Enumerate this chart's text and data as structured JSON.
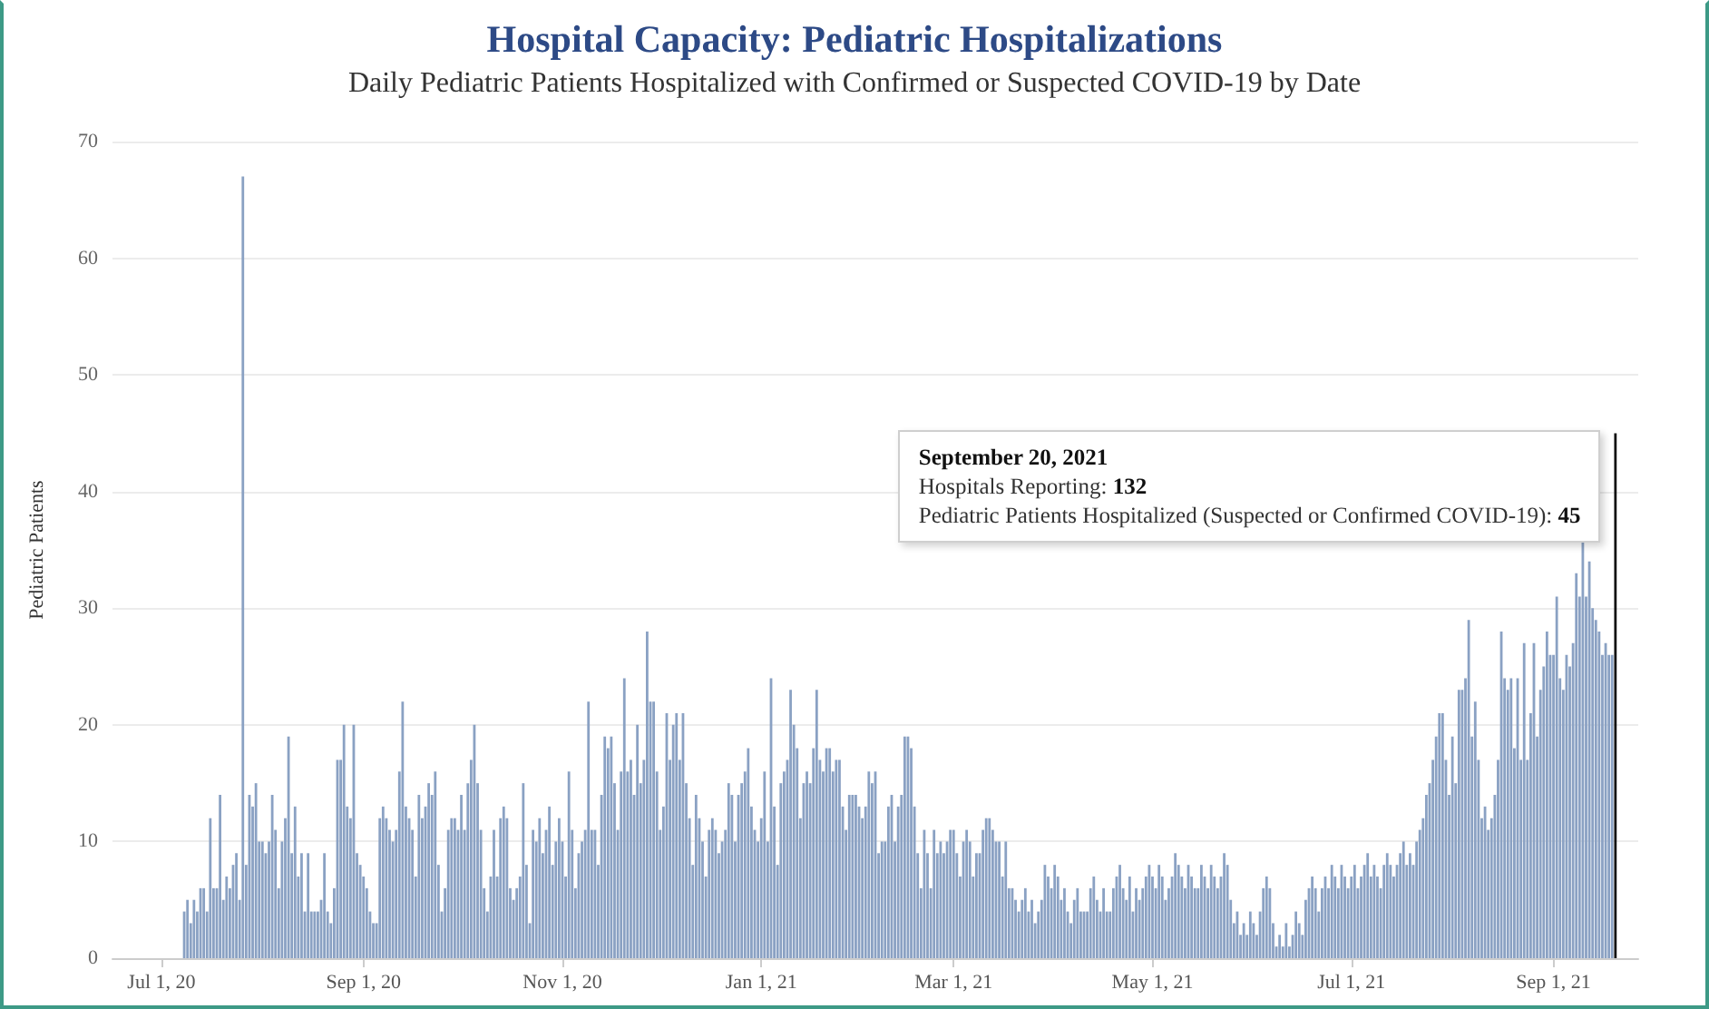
{
  "chart_data": {
    "type": "bar",
    "title": "Hospital Capacity: Pediatric Hospitalizations",
    "subtitle": "Daily Pediatric Patients Hospitalized with Confirmed or Suspected COVID-19 by Date",
    "ylabel": "Pediatric Patients",
    "x": [
      "2020-07-08",
      "2020-07-09",
      "2020-07-10",
      "2020-07-11",
      "2020-07-12",
      "2020-07-13",
      "2020-07-14",
      "2020-07-15",
      "2020-07-16",
      "2020-07-17",
      "2020-07-18",
      "2020-07-19",
      "2020-07-20",
      "2020-07-21",
      "2020-07-22",
      "2020-07-23",
      "2020-07-24",
      "2020-07-25",
      "2020-07-26",
      "2020-07-27",
      "2020-07-28",
      "2020-07-29",
      "2020-07-30",
      "2020-07-31",
      "2020-08-01",
      "2020-08-02",
      "2020-08-03",
      "2020-08-04",
      "2020-08-05",
      "2020-08-06",
      "2020-08-07",
      "2020-08-08",
      "2020-08-09",
      "2020-08-10",
      "2020-08-11",
      "2020-08-12",
      "2020-08-13",
      "2020-08-14",
      "2020-08-15",
      "2020-08-16",
      "2020-08-17",
      "2020-08-18",
      "2020-08-19",
      "2020-08-20",
      "2020-08-21",
      "2020-08-22",
      "2020-08-23",
      "2020-08-24",
      "2020-08-25",
      "2020-08-26",
      "2020-08-27",
      "2020-08-28",
      "2020-08-29",
      "2020-08-30",
      "2020-08-31",
      "2020-09-01",
      "2020-09-02",
      "2020-09-03",
      "2020-09-04",
      "2020-09-05",
      "2020-09-06",
      "2020-09-07",
      "2020-09-08",
      "2020-09-09",
      "2020-09-10",
      "2020-09-11",
      "2020-09-12",
      "2020-09-13",
      "2020-09-14",
      "2020-09-15",
      "2020-09-16",
      "2020-09-17",
      "2020-09-18",
      "2020-09-19",
      "2020-09-20",
      "2020-09-21",
      "2020-09-22",
      "2020-09-23",
      "2020-09-24",
      "2020-09-25",
      "2020-09-26",
      "2020-09-27",
      "2020-09-28",
      "2020-09-29",
      "2020-09-30",
      "2020-10-01",
      "2020-10-02",
      "2020-10-03",
      "2020-10-04",
      "2020-10-05",
      "2020-10-06",
      "2020-10-07",
      "2020-10-08",
      "2020-10-09",
      "2020-10-10",
      "2020-10-11",
      "2020-10-12",
      "2020-10-13",
      "2020-10-14",
      "2020-10-15",
      "2020-10-16",
      "2020-10-17",
      "2020-10-18",
      "2020-10-19",
      "2020-10-20",
      "2020-10-21",
      "2020-10-22",
      "2020-10-23",
      "2020-10-24",
      "2020-10-25",
      "2020-10-26",
      "2020-10-27",
      "2020-10-28",
      "2020-10-29",
      "2020-10-30",
      "2020-10-31",
      "2020-11-01",
      "2020-11-02",
      "2020-11-03",
      "2020-11-04",
      "2020-11-05",
      "2020-11-06",
      "2020-11-07",
      "2020-11-08",
      "2020-11-09",
      "2020-11-10",
      "2020-11-11",
      "2020-11-12",
      "2020-11-13",
      "2020-11-14",
      "2020-11-15",
      "2020-11-16",
      "2020-11-17",
      "2020-11-18",
      "2020-11-19",
      "2020-11-20",
      "2020-11-21",
      "2020-11-22",
      "2020-11-23",
      "2020-11-24",
      "2020-11-25",
      "2020-11-26",
      "2020-11-27",
      "2020-11-28",
      "2020-11-29",
      "2020-11-30",
      "2020-12-01",
      "2020-12-02",
      "2020-12-03",
      "2020-12-04",
      "2020-12-05",
      "2020-12-06",
      "2020-12-07",
      "2020-12-08",
      "2020-12-09",
      "2020-12-10",
      "2020-12-11",
      "2020-12-12",
      "2020-12-13",
      "2020-12-14",
      "2020-12-15",
      "2020-12-16",
      "2020-12-17",
      "2020-12-18",
      "2020-12-19",
      "2020-12-20",
      "2020-12-21",
      "2020-12-22",
      "2020-12-23",
      "2020-12-24",
      "2020-12-25",
      "2020-12-26",
      "2020-12-27",
      "2020-12-28",
      "2020-12-29",
      "2020-12-30",
      "2020-12-31",
      "2021-01-01",
      "2021-01-02",
      "2021-01-03",
      "2021-01-04",
      "2021-01-05",
      "2021-01-06",
      "2021-01-07",
      "2021-01-08",
      "2021-01-09",
      "2021-01-10",
      "2021-01-11",
      "2021-01-12",
      "2021-01-13",
      "2021-01-14",
      "2021-01-15",
      "2021-01-16",
      "2021-01-17",
      "2021-01-18",
      "2021-01-19",
      "2021-01-20",
      "2021-01-21",
      "2021-01-22",
      "2021-01-23",
      "2021-01-24",
      "2021-01-25",
      "2021-01-26",
      "2021-01-27",
      "2021-01-28",
      "2021-01-29",
      "2021-01-30",
      "2021-01-31",
      "2021-02-01",
      "2021-02-02",
      "2021-02-03",
      "2021-02-04",
      "2021-02-05",
      "2021-02-06",
      "2021-02-07",
      "2021-02-08",
      "2021-02-09",
      "2021-02-10",
      "2021-02-11",
      "2021-02-12",
      "2021-02-13",
      "2021-02-14",
      "2021-02-15",
      "2021-02-16",
      "2021-02-17",
      "2021-02-18",
      "2021-02-19",
      "2021-02-20",
      "2021-02-21",
      "2021-02-22",
      "2021-02-23",
      "2021-02-24",
      "2021-02-25",
      "2021-02-26",
      "2021-02-27",
      "2021-02-28",
      "2021-03-01",
      "2021-03-02",
      "2021-03-03",
      "2021-03-04",
      "2021-03-05",
      "2021-03-06",
      "2021-03-07",
      "2021-03-08",
      "2021-03-09",
      "2021-03-10",
      "2021-03-11",
      "2021-03-12",
      "2021-03-13",
      "2021-03-14",
      "2021-03-15",
      "2021-03-16",
      "2021-03-17",
      "2021-03-18",
      "2021-03-19",
      "2021-03-20",
      "2021-03-21",
      "2021-03-22",
      "2021-03-23",
      "2021-03-24",
      "2021-03-25",
      "2021-03-26",
      "2021-03-27",
      "2021-03-28",
      "2021-03-29",
      "2021-03-30",
      "2021-03-31",
      "2021-04-01",
      "2021-04-02",
      "2021-04-03",
      "2021-04-04",
      "2021-04-05",
      "2021-04-06",
      "2021-04-07",
      "2021-04-08",
      "2021-04-09",
      "2021-04-10",
      "2021-04-11",
      "2021-04-12",
      "2021-04-13",
      "2021-04-14",
      "2021-04-15",
      "2021-04-16",
      "2021-04-17",
      "2021-04-18",
      "2021-04-19",
      "2021-04-20",
      "2021-04-21",
      "2021-04-22",
      "2021-04-23",
      "2021-04-24",
      "2021-04-25",
      "2021-04-26",
      "2021-04-27",
      "2021-04-28",
      "2021-04-29",
      "2021-04-30",
      "2021-05-01",
      "2021-05-02",
      "2021-05-03",
      "2021-05-04",
      "2021-05-05",
      "2021-05-06",
      "2021-05-07",
      "2021-05-08",
      "2021-05-09",
      "2021-05-10",
      "2021-05-11",
      "2021-05-12",
      "2021-05-13",
      "2021-05-14",
      "2021-05-15",
      "2021-05-16",
      "2021-05-17",
      "2021-05-18",
      "2021-05-19",
      "2021-05-20",
      "2021-05-21",
      "2021-05-22",
      "2021-05-23",
      "2021-05-24",
      "2021-05-25",
      "2021-05-26",
      "2021-05-27",
      "2021-05-28",
      "2021-05-29",
      "2021-05-30",
      "2021-05-31",
      "2021-06-01",
      "2021-06-02",
      "2021-06-03",
      "2021-06-04",
      "2021-06-05",
      "2021-06-06",
      "2021-06-07",
      "2021-06-08",
      "2021-06-09",
      "2021-06-10",
      "2021-06-11",
      "2021-06-12",
      "2021-06-13",
      "2021-06-14",
      "2021-06-15",
      "2021-06-16",
      "2021-06-17",
      "2021-06-18",
      "2021-06-19",
      "2021-06-20",
      "2021-06-21",
      "2021-06-22",
      "2021-06-23",
      "2021-06-24",
      "2021-06-25",
      "2021-06-26",
      "2021-06-27",
      "2021-06-28",
      "2021-06-29",
      "2021-06-30",
      "2021-07-01",
      "2021-07-02",
      "2021-07-03",
      "2021-07-04",
      "2021-07-05",
      "2021-07-06",
      "2021-07-07",
      "2021-07-08",
      "2021-07-09",
      "2021-07-10",
      "2021-07-11",
      "2021-07-12",
      "2021-07-13",
      "2021-07-14",
      "2021-07-15",
      "2021-07-16",
      "2021-07-17",
      "2021-07-18",
      "2021-07-19",
      "2021-07-20",
      "2021-07-21",
      "2021-07-22",
      "2021-07-23",
      "2021-07-24",
      "2021-07-25",
      "2021-07-26",
      "2021-07-27",
      "2021-07-28",
      "2021-07-29",
      "2021-07-30",
      "2021-07-31",
      "2021-08-01",
      "2021-08-02",
      "2021-08-03",
      "2021-08-04",
      "2021-08-05",
      "2021-08-06",
      "2021-08-07",
      "2021-08-08",
      "2021-08-09",
      "2021-08-10",
      "2021-08-11",
      "2021-08-12",
      "2021-08-13",
      "2021-08-14",
      "2021-08-15",
      "2021-08-16",
      "2021-08-17",
      "2021-08-18",
      "2021-08-19",
      "2021-08-20",
      "2021-08-21",
      "2021-08-22",
      "2021-08-23",
      "2021-08-24",
      "2021-08-25",
      "2021-08-26",
      "2021-08-27",
      "2021-08-28",
      "2021-08-29",
      "2021-08-30",
      "2021-08-31",
      "2021-09-01",
      "2021-09-02",
      "2021-09-03",
      "2021-09-04",
      "2021-09-05",
      "2021-09-06",
      "2021-09-07",
      "2021-09-08",
      "2021-09-09",
      "2021-09-10",
      "2021-09-11",
      "2021-09-12",
      "2021-09-13",
      "2021-09-14",
      "2021-09-15",
      "2021-09-16",
      "2021-09-17",
      "2021-09-18",
      "2021-09-19",
      "2021-09-20"
    ],
    "values": [
      4,
      5,
      3,
      5,
      4,
      6,
      6,
      4,
      12,
      6,
      6,
      14,
      5,
      7,
      6,
      8,
      9,
      5,
      67,
      8,
      14,
      13,
      15,
      10,
      10,
      9,
      10,
      14,
      11,
      6,
      10,
      12,
      19,
      9,
      13,
      7,
      9,
      4,
      9,
      4,
      4,
      4,
      5,
      9,
      4,
      3,
      6,
      17,
      17,
      20,
      13,
      12,
      20,
      9,
      8,
      7,
      6,
      4,
      3,
      3,
      12,
      13,
      12,
      11,
      10,
      11,
      16,
      22,
      13,
      12,
      11,
      7,
      14,
      12,
      13,
      15,
      14,
      16,
      8,
      4,
      6,
      11,
      12,
      12,
      11,
      14,
      11,
      15,
      17,
      20,
      15,
      11,
      6,
      4,
      7,
      11,
      7,
      12,
      13,
      12,
      6,
      5,
      6,
      7,
      15,
      8,
      3,
      11,
      10,
      12,
      9,
      11,
      13,
      8,
      10,
      12,
      10,
      7,
      16,
      11,
      6,
      9,
      10,
      11,
      22,
      11,
      11,
      8,
      14,
      19,
      18,
      19,
      15,
      11,
      16,
      24,
      16,
      17,
      14,
      20,
      15,
      17,
      28,
      22,
      22,
      16,
      11,
      13,
      21,
      17,
      20,
      21,
      17,
      21,
      15,
      12,
      8,
      14,
      12,
      10,
      7,
      11,
      12,
      11,
      9,
      10,
      11,
      15,
      14,
      10,
      14,
      15,
      16,
      18,
      13,
      11,
      10,
      12,
      16,
      10,
      24,
      13,
      8,
      15,
      16,
      17,
      23,
      20,
      18,
      12,
      15,
      16,
      15,
      18,
      23,
      17,
      16,
      18,
      18,
      16,
      17,
      17,
      13,
      11,
      14,
      14,
      14,
      13,
      12,
      13,
      16,
      15,
      16,
      9,
      10,
      10,
      13,
      14,
      10,
      13,
      14,
      19,
      19,
      18,
      13,
      9,
      6,
      11,
      9,
      6,
      11,
      9,
      10,
      9,
      10,
      11,
      11,
      9,
      7,
      10,
      11,
      10,
      7,
      9,
      9,
      11,
      12,
      12,
      11,
      10,
      10,
      7,
      10,
      6,
      6,
      5,
      4,
      5,
      6,
      4,
      5,
      3,
      4,
      5,
      8,
      7,
      6,
      8,
      7,
      5,
      6,
      4,
      3,
      5,
      6,
      4,
      4,
      4,
      6,
      7,
      5,
      4,
      6,
      4,
      4,
      6,
      7,
      8,
      6,
      5,
      7,
      4,
      6,
      5,
      6,
      7,
      8,
      7,
      6,
      8,
      7,
      5,
      6,
      7,
      9,
      8,
      7,
      6,
      8,
      7,
      6,
      6,
      8,
      7,
      6,
      8,
      7,
      6,
      7,
      9,
      8,
      5,
      3,
      4,
      2,
      3,
      2,
      4,
      3,
      2,
      4,
      6,
      7,
      6,
      3,
      1,
      2,
      1,
      3,
      1,
      2,
      4,
      3,
      2,
      5,
      6,
      7,
      6,
      4,
      6,
      7,
      6,
      8,
      7,
      6,
      8,
      7,
      6,
      7,
      8,
      6,
      7,
      8,
      9,
      7,
      8,
      7,
      6,
      8,
      9,
      8,
      7,
      8,
      9,
      10,
      8,
      9,
      8,
      10,
      11,
      12,
      14,
      15,
      17,
      19,
      21,
      21,
      17,
      14,
      19,
      15,
      23,
      23,
      24,
      29,
      19,
      22,
      17,
      12,
      13,
      11,
      12,
      14,
      17,
      28,
      24,
      23,
      24,
      18,
      24,
      17,
      27,
      17,
      21,
      27,
      19,
      23,
      25,
      28,
      26,
      26,
      31,
      24,
      23,
      26,
      25,
      27,
      33,
      31,
      36,
      31,
      34,
      30,
      29,
      28,
      26,
      27,
      26,
      26,
      45
    ],
    "color": "#8aa1c3",
    "xlim": [
      "2020-06-16",
      "2021-09-27"
    ],
    "xticks": [
      {
        "value": "2020-07-01",
        "label": "Jul 1, 20"
      },
      {
        "value": "2020-09-01",
        "label": "Sep 1, 20"
      },
      {
        "value": "2020-11-01",
        "label": "Nov 1, 20"
      },
      {
        "value": "2021-01-01",
        "label": "Jan 1, 21"
      },
      {
        "value": "2021-03-01",
        "label": "Mar 1, 21"
      },
      {
        "value": "2021-05-01",
        "label": "May 1, 21"
      },
      {
        "value": "2021-07-01",
        "label": "Jul 1, 21"
      },
      {
        "value": "2021-09-01",
        "label": "Sep 1, 21"
      }
    ],
    "ylim": [
      0,
      70
    ],
    "yticks": [
      0,
      10,
      20,
      30,
      40,
      50,
      60,
      70
    ],
    "grid": "y",
    "annotations": [
      {
        "text": "September 20, 2021\nHospitals Reporting: 132\nPediatric Patients Hospitalized (Suspected or Confirmed COVID-19): 45",
        "x": "2021-09-20",
        "y": 45
      }
    ]
  }
}
